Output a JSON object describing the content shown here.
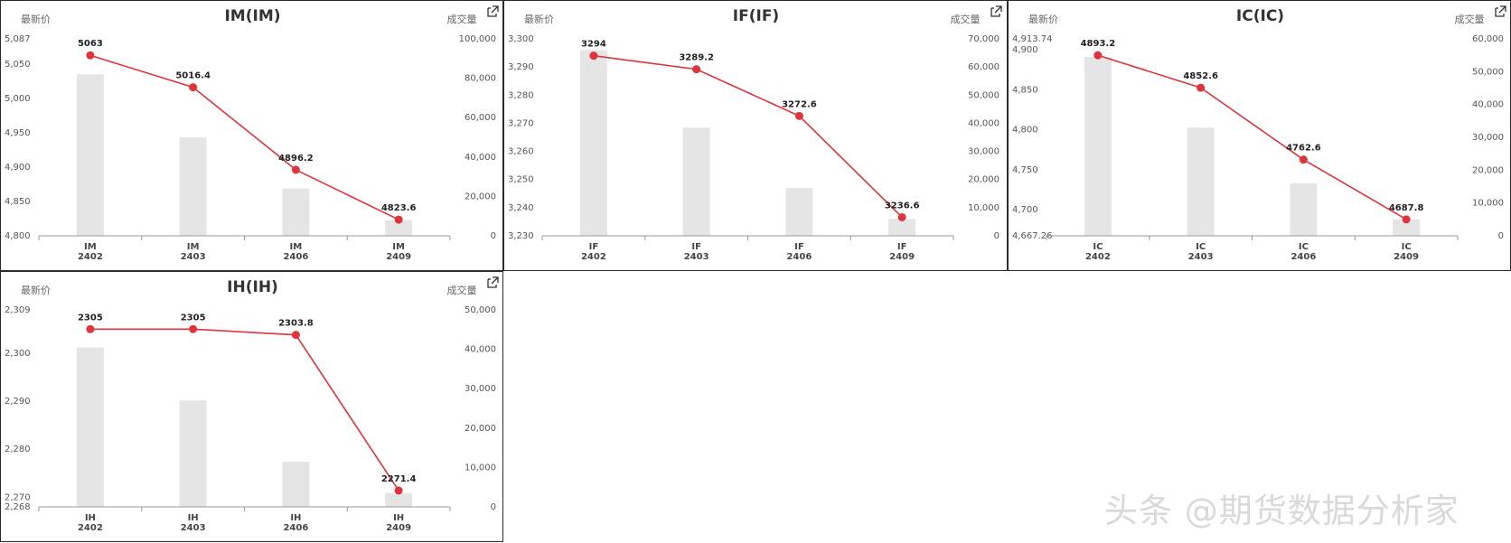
{
  "watermark": "头条 @期货数据分析家",
  "colors": {
    "line": "#e0343d",
    "bar": "#e5e5e5",
    "axis": "#999999"
  },
  "icon": "expand-icon",
  "chart_data": [
    {
      "type": "bar+line",
      "title": "IM(IM)",
      "ylabel_left": "最新价",
      "ylabel_right": "成交量",
      "categories": [
        [
          "IM",
          "2402"
        ],
        [
          "IM",
          "2403"
        ],
        [
          "IM",
          "2406"
        ],
        [
          "IM",
          "2409"
        ]
      ],
      "price": [
        5063,
        5016.4,
        4896.2,
        4823.6
      ],
      "price_labels": [
        "5063",
        "5016.4",
        "4896.2",
        "4823.6"
      ],
      "volume": [
        82000,
        50000,
        24000,
        8000
      ],
      "left_ylim": [
        4800,
        5087
      ],
      "left_ticks": [
        "5,087",
        "5,050",
        "5,000",
        "4,950",
        "4,900",
        "4,850",
        "4,800"
      ],
      "left_tick_values": [
        5087,
        5050,
        5000,
        4950,
        4900,
        4850,
        4800
      ],
      "right_ylim": [
        0,
        100000
      ],
      "right_ticks": [
        "100,000",
        "80,000",
        "60,000",
        "40,000",
        "20,000",
        "0"
      ],
      "right_tick_values": [
        100000,
        80000,
        60000,
        40000,
        20000,
        0
      ]
    },
    {
      "type": "bar+line",
      "title": "IF(IF)",
      "ylabel_left": "最新价",
      "ylabel_right": "成交量",
      "categories": [
        [
          "IF",
          "2402"
        ],
        [
          "IF",
          "2403"
        ],
        [
          "IF",
          "2406"
        ],
        [
          "IF",
          "2409"
        ]
      ],
      "price": [
        3294,
        3289.2,
        3272.6,
        3236.6
      ],
      "price_labels": [
        "3294",
        "3289.2",
        "3272.6",
        "3236.6"
      ],
      "volume": [
        66000,
        38500,
        17000,
        6000
      ],
      "left_ylim": [
        3230,
        3300
      ],
      "left_ticks": [
        "3,300",
        "3,290",
        "3,280",
        "3,270",
        "3,260",
        "3,250",
        "3,240",
        "3,230"
      ],
      "left_tick_values": [
        3300,
        3290,
        3280,
        3270,
        3260,
        3250,
        3240,
        3230
      ],
      "right_ylim": [
        0,
        70000
      ],
      "right_ticks": [
        "70,000",
        "60,000",
        "50,000",
        "40,000",
        "30,000",
        "20,000",
        "10,000",
        "0"
      ],
      "right_tick_values": [
        70000,
        60000,
        50000,
        40000,
        30000,
        20000,
        10000,
        0
      ]
    },
    {
      "type": "bar+line",
      "title": "IC(IC)",
      "ylabel_left": "最新价",
      "ylabel_right": "成交量",
      "categories": [
        [
          "IC",
          "2402"
        ],
        [
          "IC",
          "2403"
        ],
        [
          "IC",
          "2406"
        ],
        [
          "IC",
          "2409"
        ]
      ],
      "price": [
        4893.2,
        4852.6,
        4762.6,
        4687.8
      ],
      "price_labels": [
        "4893.2",
        "4852.6",
        "4762.6",
        "4687.8"
      ],
      "volume": [
        54500,
        33000,
        16000,
        5000
      ],
      "left_ylim": [
        4667.26,
        4913.74
      ],
      "left_ticks": [
        "4,913.74",
        "4,900",
        "4,850",
        "4,800",
        "4,750",
        "4,700",
        "4,667.26"
      ],
      "left_tick_values": [
        4913.74,
        4900,
        4850,
        4800,
        4750,
        4700,
        4667.26
      ],
      "right_ylim": [
        0,
        60000
      ],
      "right_ticks": [
        "60,000",
        "50,000",
        "40,000",
        "30,000",
        "20,000",
        "10,000",
        "0"
      ],
      "right_tick_values": [
        60000,
        50000,
        40000,
        30000,
        20000,
        10000,
        0
      ]
    },
    {
      "type": "bar+line",
      "title": "IH(IH)",
      "ylabel_left": "最新价",
      "ylabel_right": "成交量",
      "categories": [
        [
          "IH",
          "2402"
        ],
        [
          "IH",
          "2403"
        ],
        [
          "IH",
          "2406"
        ],
        [
          "IH",
          "2409"
        ]
      ],
      "price": [
        2305,
        2305,
        2303.8,
        2271.4
      ],
      "price_labels": [
        "2305",
        "2305",
        "2303.8",
        "2271.4"
      ],
      "volume": [
        40500,
        27000,
        11500,
        3500
      ],
      "left_ylim": [
        2268,
        2309
      ],
      "left_ticks": [
        "2,309",
        "2,300",
        "2,290",
        "2,280",
        "2,270",
        "2,268"
      ],
      "left_tick_values": [
        2309,
        2300,
        2290,
        2280,
        2270,
        2268
      ],
      "right_ylim": [
        0,
        50000
      ],
      "right_ticks": [
        "50,000",
        "40,000",
        "30,000",
        "20,000",
        "10,000",
        "0"
      ],
      "right_tick_values": [
        50000,
        40000,
        30000,
        20000,
        10000,
        0
      ]
    }
  ]
}
